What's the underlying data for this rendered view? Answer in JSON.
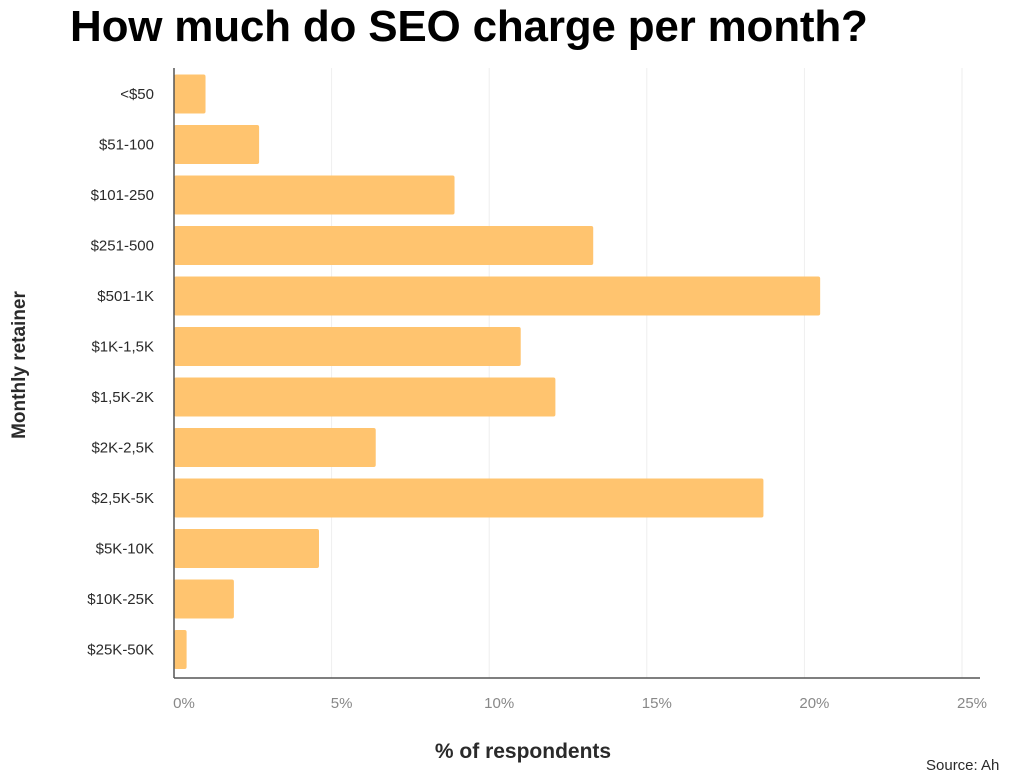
{
  "chart_data": {
    "type": "bar",
    "orientation": "horizontal",
    "title": "How much do SEO charge per month?",
    "xlabel": "% of respondents",
    "ylabel": "Monthly retainer",
    "source": "Source: Ah",
    "categories": [
      "<$50",
      "$51-100",
      "$101-250",
      "$251-500",
      "$501-1K",
      "$1K-1,5K",
      "$1,5K-2K",
      "$2K-2,5K",
      "$2,5K-5K",
      "$5K-10K",
      "$10K-25K",
      "$25K-50K"
    ],
    "values": [
      1.0,
      2.7,
      8.9,
      13.3,
      20.5,
      11.0,
      12.1,
      6.4,
      18.7,
      4.6,
      1.9,
      0.4
    ],
    "xticks": [
      "0%",
      "5%",
      "10%",
      "15%",
      "20%",
      "25%"
    ],
    "xtick_values": [
      0,
      5,
      10,
      15,
      20,
      25
    ],
    "xlim": [
      0,
      25
    ],
    "grid": true,
    "bar_color": "#FFC46F",
    "grid_color": "#EEEEEE",
    "axis_color": "#555555"
  }
}
